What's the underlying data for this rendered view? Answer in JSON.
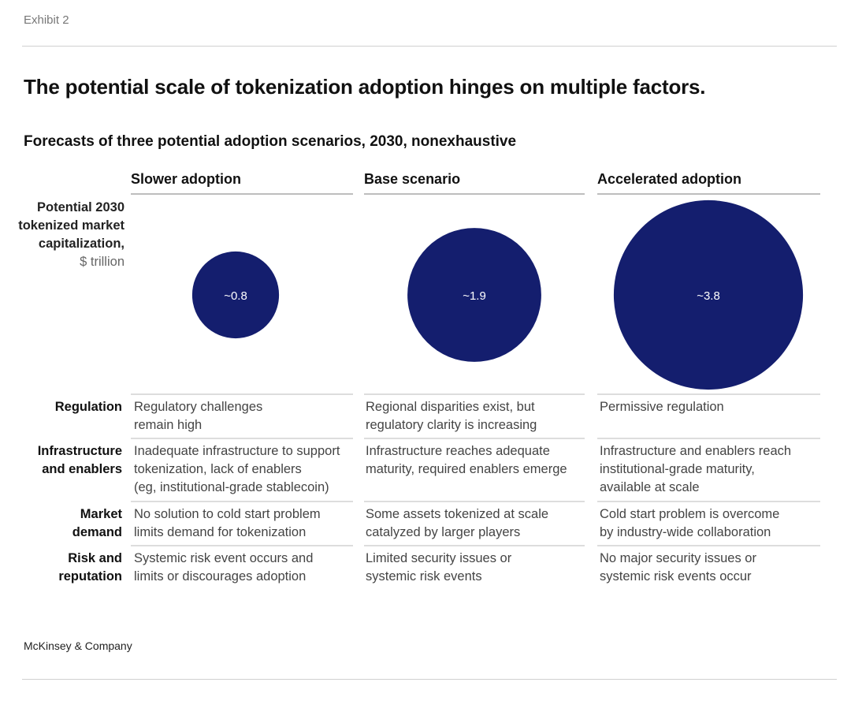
{
  "exhibit": "Exhibit 2",
  "title": "The potential scale of tokenization adoption hinges on multiple factors.",
  "subtitle": "Forecasts of three potential adoption scenarios, 2030, nonexhaustive",
  "footer": "McKinsey & Company",
  "chart_data": {
    "type": "bubble",
    "title": "The potential scale of tokenization adoption hinges on multiple factors.",
    "subtitle": "Forecasts of three potential adoption scenarios, 2030, nonexhaustive",
    "ylabel": "Potential 2030 tokenized market capitalization,",
    "unit": "$ trillion",
    "categories": [
      "Slower adoption",
      "Base scenario",
      "Accelerated adoption"
    ],
    "values": [
      0.8,
      1.9,
      3.8
    ],
    "data_labels": [
      "~0.8",
      "~1.9",
      "~3.8"
    ],
    "color": "#141e6e"
  },
  "table": {
    "rows": [
      {
        "label": "Regulation",
        "cells": [
          "Regulatory challenges\nremain high",
          "Regional disparities exist, but\nregulatory clarity is increasing",
          "Permissive regulation"
        ]
      },
      {
        "label": "Infrastructure\nand enablers",
        "cells": [
          "Inadequate infrastructure to support\ntokenization, lack of enablers\n(eg, institutional-grade stablecoin)",
          "Infrastructure reaches adequate\nmaturity, required enablers emerge",
          "Infrastructure and enablers reach\ninstitutional-grade maturity,\navailable at scale"
        ]
      },
      {
        "label": "Market\ndemand",
        "cells": [
          "No solution to cold start problem\nlimits demand for tokenization",
          "Some assets tokenized at scale\ncatalyzed by larger players",
          "Cold start problem is overcome\nby industry-wide collaboration"
        ]
      },
      {
        "label": "Risk and\nreputation",
        "cells": [
          "Systemic risk event occurs and\nlimits or discourages adoption",
          "Limited security issues or\nsystemic risk events",
          "No major security issues or\nsystemic risk events occur"
        ]
      }
    ]
  }
}
